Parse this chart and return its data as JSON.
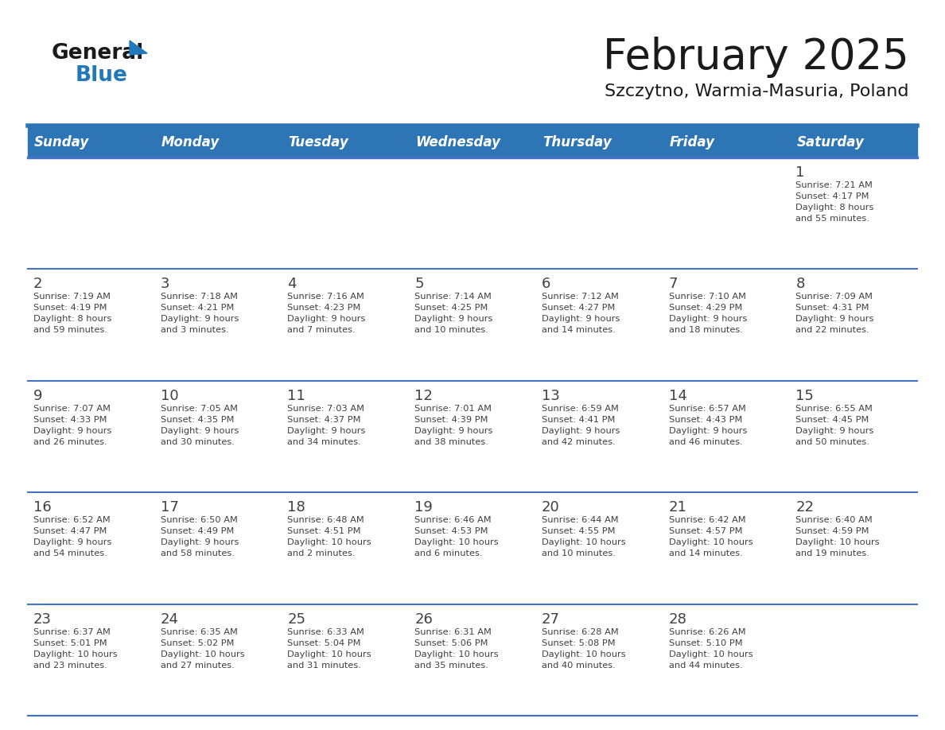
{
  "title": "February 2025",
  "subtitle": "Szczytno, Warmia-Masuria, Poland",
  "days_of_week": [
    "Sunday",
    "Monday",
    "Tuesday",
    "Wednesday",
    "Thursday",
    "Friday",
    "Saturday"
  ],
  "header_bg": "#2E75B6",
  "header_text_color": "#FFFFFF",
  "cell_bg": "#FFFFFF",
  "separator_color": "#2E75B6",
  "row_sep_color": "#4472C4",
  "text_color": "#404040",
  "title_color": "#1a1a1a",
  "logo_general_color": "#1a1a1a",
  "logo_blue_color": "#2278B8",
  "weeks": [
    [
      {
        "day": null,
        "info": null
      },
      {
        "day": null,
        "info": null
      },
      {
        "day": null,
        "info": null
      },
      {
        "day": null,
        "info": null
      },
      {
        "day": null,
        "info": null
      },
      {
        "day": null,
        "info": null
      },
      {
        "day": 1,
        "info": "Sunrise: 7:21 AM\nSunset: 4:17 PM\nDaylight: 8 hours\nand 55 minutes."
      }
    ],
    [
      {
        "day": 2,
        "info": "Sunrise: 7:19 AM\nSunset: 4:19 PM\nDaylight: 8 hours\nand 59 minutes."
      },
      {
        "day": 3,
        "info": "Sunrise: 7:18 AM\nSunset: 4:21 PM\nDaylight: 9 hours\nand 3 minutes."
      },
      {
        "day": 4,
        "info": "Sunrise: 7:16 AM\nSunset: 4:23 PM\nDaylight: 9 hours\nand 7 minutes."
      },
      {
        "day": 5,
        "info": "Sunrise: 7:14 AM\nSunset: 4:25 PM\nDaylight: 9 hours\nand 10 minutes."
      },
      {
        "day": 6,
        "info": "Sunrise: 7:12 AM\nSunset: 4:27 PM\nDaylight: 9 hours\nand 14 minutes."
      },
      {
        "day": 7,
        "info": "Sunrise: 7:10 AM\nSunset: 4:29 PM\nDaylight: 9 hours\nand 18 minutes."
      },
      {
        "day": 8,
        "info": "Sunrise: 7:09 AM\nSunset: 4:31 PM\nDaylight: 9 hours\nand 22 minutes."
      }
    ],
    [
      {
        "day": 9,
        "info": "Sunrise: 7:07 AM\nSunset: 4:33 PM\nDaylight: 9 hours\nand 26 minutes."
      },
      {
        "day": 10,
        "info": "Sunrise: 7:05 AM\nSunset: 4:35 PM\nDaylight: 9 hours\nand 30 minutes."
      },
      {
        "day": 11,
        "info": "Sunrise: 7:03 AM\nSunset: 4:37 PM\nDaylight: 9 hours\nand 34 minutes."
      },
      {
        "day": 12,
        "info": "Sunrise: 7:01 AM\nSunset: 4:39 PM\nDaylight: 9 hours\nand 38 minutes."
      },
      {
        "day": 13,
        "info": "Sunrise: 6:59 AM\nSunset: 4:41 PM\nDaylight: 9 hours\nand 42 minutes."
      },
      {
        "day": 14,
        "info": "Sunrise: 6:57 AM\nSunset: 4:43 PM\nDaylight: 9 hours\nand 46 minutes."
      },
      {
        "day": 15,
        "info": "Sunrise: 6:55 AM\nSunset: 4:45 PM\nDaylight: 9 hours\nand 50 minutes."
      }
    ],
    [
      {
        "day": 16,
        "info": "Sunrise: 6:52 AM\nSunset: 4:47 PM\nDaylight: 9 hours\nand 54 minutes."
      },
      {
        "day": 17,
        "info": "Sunrise: 6:50 AM\nSunset: 4:49 PM\nDaylight: 9 hours\nand 58 minutes."
      },
      {
        "day": 18,
        "info": "Sunrise: 6:48 AM\nSunset: 4:51 PM\nDaylight: 10 hours\nand 2 minutes."
      },
      {
        "day": 19,
        "info": "Sunrise: 6:46 AM\nSunset: 4:53 PM\nDaylight: 10 hours\nand 6 minutes."
      },
      {
        "day": 20,
        "info": "Sunrise: 6:44 AM\nSunset: 4:55 PM\nDaylight: 10 hours\nand 10 minutes."
      },
      {
        "day": 21,
        "info": "Sunrise: 6:42 AM\nSunset: 4:57 PM\nDaylight: 10 hours\nand 14 minutes."
      },
      {
        "day": 22,
        "info": "Sunrise: 6:40 AM\nSunset: 4:59 PM\nDaylight: 10 hours\nand 19 minutes."
      }
    ],
    [
      {
        "day": 23,
        "info": "Sunrise: 6:37 AM\nSunset: 5:01 PM\nDaylight: 10 hours\nand 23 minutes."
      },
      {
        "day": 24,
        "info": "Sunrise: 6:35 AM\nSunset: 5:02 PM\nDaylight: 10 hours\nand 27 minutes."
      },
      {
        "day": 25,
        "info": "Sunrise: 6:33 AM\nSunset: 5:04 PM\nDaylight: 10 hours\nand 31 minutes."
      },
      {
        "day": 26,
        "info": "Sunrise: 6:31 AM\nSunset: 5:06 PM\nDaylight: 10 hours\nand 35 minutes."
      },
      {
        "day": 27,
        "info": "Sunrise: 6:28 AM\nSunset: 5:08 PM\nDaylight: 10 hours\nand 40 minutes."
      },
      {
        "day": 28,
        "info": "Sunrise: 6:26 AM\nSunset: 5:10 PM\nDaylight: 10 hours\nand 44 minutes."
      },
      {
        "day": null,
        "info": null
      }
    ]
  ]
}
